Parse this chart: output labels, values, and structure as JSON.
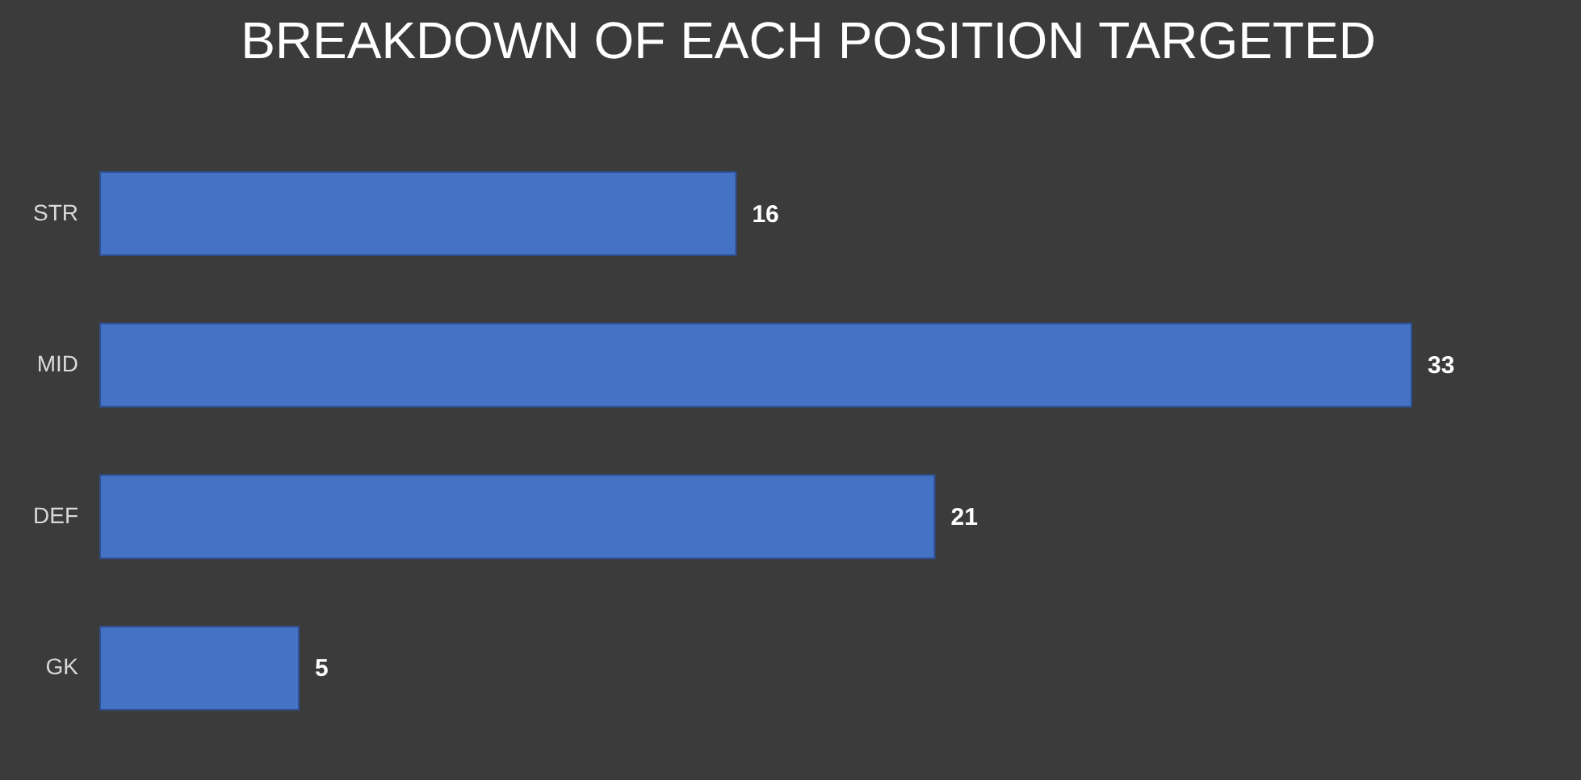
{
  "chart_data": {
    "type": "bar",
    "orientation": "horizontal",
    "title": "BREAKDOWN OF EACH POSITION TARGETED",
    "categories": [
      "STR",
      "MID",
      "DEF",
      "GK"
    ],
    "values": [
      16,
      33,
      21,
      5
    ],
    "color": "#4472c4",
    "data_labels": true
  }
}
